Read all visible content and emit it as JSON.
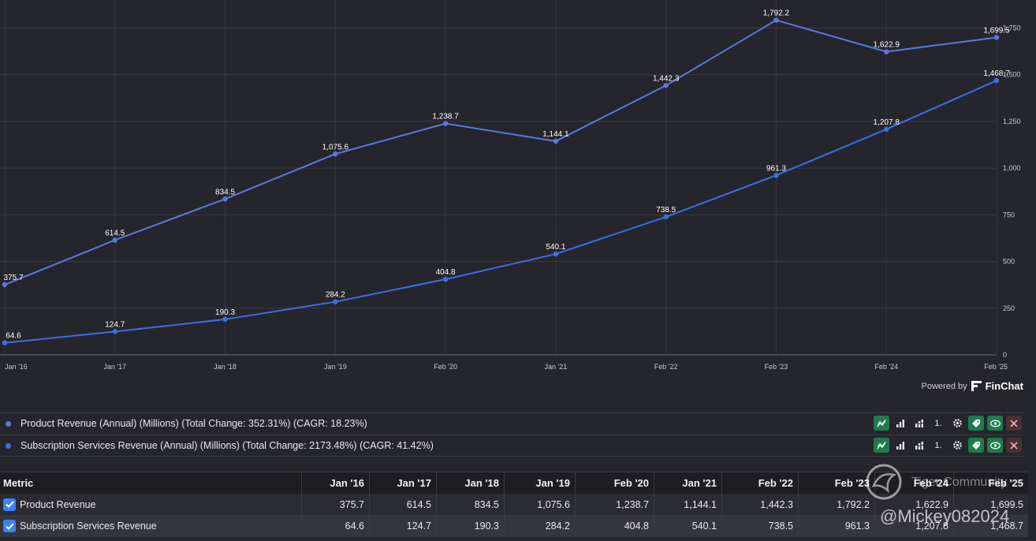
{
  "chart_data": {
    "type": "line",
    "categories": [
      "Jan '16",
      "Jan '17",
      "Jan '18",
      "Jan '19",
      "Feb '20",
      "Jan '21",
      "Feb '22",
      "Feb '23",
      "Feb '24",
      "Feb '25"
    ],
    "series": [
      {
        "name": "Product Revenue",
        "color": "#5b78e0",
        "values": [
          375.7,
          614.5,
          834.5,
          1075.6,
          1238.7,
          1144.1,
          1442.3,
          1792.2,
          1622.9,
          1699.5
        ]
      },
      {
        "name": "Subscription Services Revenue",
        "color": "#3b6fe6",
        "values": [
          64.6,
          124.7,
          190.3,
          284.2,
          404.8,
          540.1,
          738.5,
          961.3,
          1207.8,
          1468.7
        ]
      }
    ],
    "data_labels": [
      [
        "375.7",
        "614.5",
        "834.5",
        "1,075.6",
        "1,238.7",
        "1,144.1",
        "1,442.3",
        "1,792.2",
        "1,622.9",
        "1,699.5"
      ],
      [
        "64.6",
        "124.7",
        "190.3",
        "284.2",
        "404.8",
        "540.1",
        "738.5",
        "961.3",
        "1,207.8",
        "1,468.7"
      ]
    ],
    "x_tick_labels": [
      "Jan '16",
      "Jan '17",
      "Jan '18",
      "Jan '19",
      "Feb '20",
      "Jan '21",
      "Feb '22",
      "Feb '23",
      "Feb '24",
      "Feb '25"
    ],
    "y_ticks": [
      0,
      250,
      500,
      750,
      1000,
      1250,
      1500,
      1750
    ],
    "y_tick_labels": [
      "0",
      "250",
      "500",
      "750",
      "1,000",
      "1,250",
      "1,500",
      "1,750"
    ],
    "ylim": [
      0,
      1900
    ],
    "y_axis_side": "right",
    "grid": true,
    "title": "",
    "xlabel": "",
    "ylabel": ""
  },
  "colors": {
    "background": "#25252c",
    "grid": "#3a3a42",
    "accent_green": "#1f7a4e"
  },
  "powered_by": {
    "prefix": "Powered by",
    "brand": "FinChat"
  },
  "legend_rows": [
    {
      "label": "Product Revenue (Annual) (Millions) (Total Change: 352.31%) (CAGR: 18.23%)",
      "dot_color": "#5b78e0"
    },
    {
      "label": "Subscription Services Revenue (Annual) (Millions) (Total Change: 2173.48%) (CAGR: 41.42%)",
      "dot_color": "#3b6fe6"
    }
  ],
  "tool_icons": [
    "line-chart-icon",
    "bar-chart-icon",
    "stacked-bar-icon",
    "sort-arrow-icon",
    "gear-icon",
    "tag-icon",
    "eye-icon",
    "close-icon"
  ],
  "tool_arrow_text": "1.",
  "table": {
    "header": [
      "Metric",
      "Jan '16",
      "Jan '17",
      "Jan '18",
      "Jan '19",
      "Feb '20",
      "Jan '21",
      "Feb '22",
      "Feb '23",
      "Feb '24",
      "Feb '25"
    ],
    "rows": [
      {
        "metric": "Product Revenue",
        "values": [
          "375.7",
          "614.5",
          "834.5",
          "1,075.6",
          "1,238.7",
          "1,144.1",
          "1,442.3",
          "1,792.2",
          "1,622.9",
          "1,699.5"
        ]
      },
      {
        "metric": "Subscription Services Revenue",
        "values": [
          "64.6",
          "124.7",
          "190.3",
          "284.2",
          "404.8",
          "540.1",
          "738.5",
          "961.3",
          "1,207.8",
          "1,468.7"
        ]
      }
    ]
  },
  "watermark": {
    "line1": "Tiger Community",
    "line2": "@Mickey082024"
  }
}
